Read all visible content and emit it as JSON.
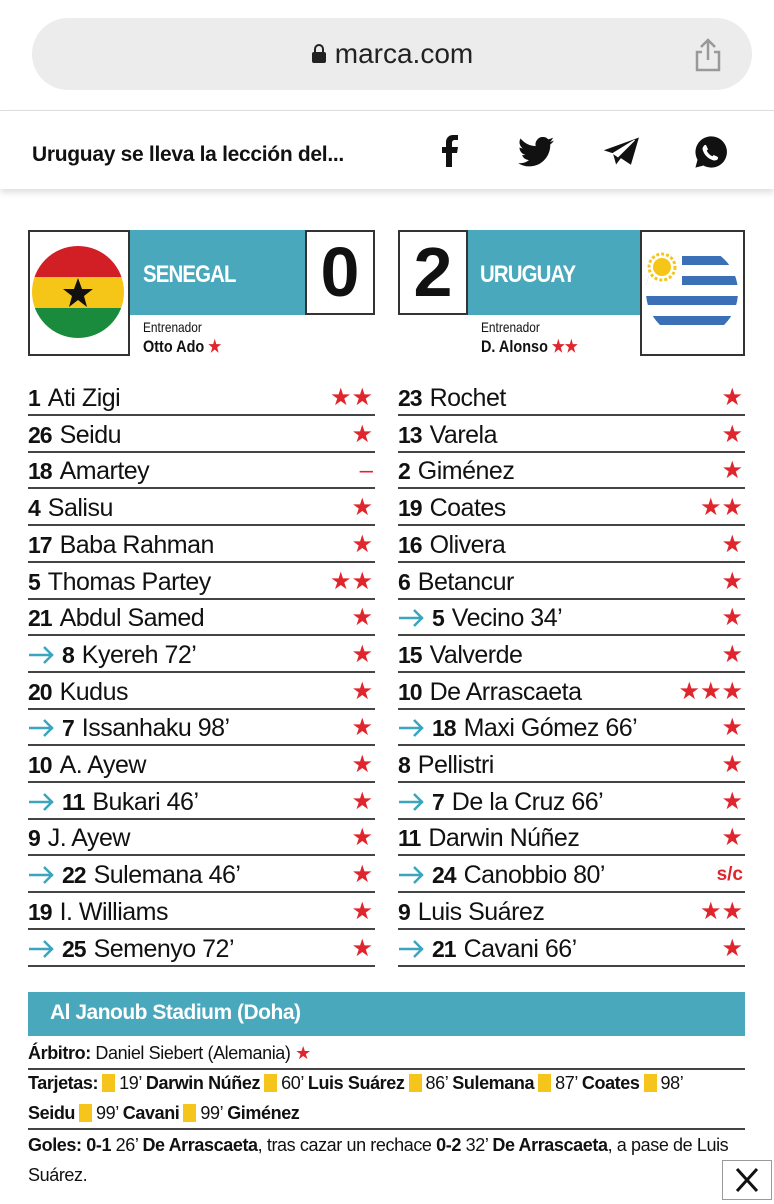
{
  "browser": {
    "url": "marca.com"
  },
  "header": {
    "title": "Uruguay se lleva la lección del..."
  },
  "match": {
    "home": {
      "team": "SENEGAL",
      "score": "0",
      "coach_label": "Entrenador",
      "coach": "Otto Ado",
      "coach_rating": "★",
      "players": [
        {
          "number": "1",
          "name": "Ati Zigi",
          "sub": false,
          "rating": "★★"
        },
        {
          "number": "26",
          "name": "Seidu",
          "sub": false,
          "rating": "★"
        },
        {
          "number": "18",
          "name": "Amartey",
          "sub": false,
          "rating": "–"
        },
        {
          "number": "4",
          "name": "Salisu",
          "sub": false,
          "rating": "★"
        },
        {
          "number": "17",
          "name": "Baba Rahman",
          "sub": false,
          "rating": "★"
        },
        {
          "number": "5",
          "name": "Thomas Partey",
          "sub": false,
          "rating": "★★"
        },
        {
          "number": "21",
          "name": "Abdul Samed",
          "sub": false,
          "rating": "★"
        },
        {
          "number": "8",
          "name": "Kyereh 72’",
          "sub": true,
          "rating": "★"
        },
        {
          "number": "20",
          "name": "Kudus",
          "sub": false,
          "rating": "★"
        },
        {
          "number": "7",
          "name": "Issanhaku 98’",
          "sub": true,
          "rating": "★"
        },
        {
          "number": "10",
          "name": "A. Ayew",
          "sub": false,
          "rating": "★"
        },
        {
          "number": "11",
          "name": "Bukari 46’",
          "sub": true,
          "rating": "★"
        },
        {
          "number": "9",
          "name": "J. Ayew",
          "sub": false,
          "rating": "★"
        },
        {
          "number": "22",
          "name": "Sulemana 46’",
          "sub": true,
          "rating": "★"
        },
        {
          "number": "19",
          "name": "I. Williams",
          "sub": false,
          "rating": "★"
        },
        {
          "number": "25",
          "name": "Semenyo 72’",
          "sub": true,
          "rating": "★"
        }
      ]
    },
    "away": {
      "team": "URUGUAY",
      "score": "2",
      "coach_label": "Entrenador",
      "coach": "D. Alonso",
      "coach_rating": "★★",
      "players": [
        {
          "number": "23",
          "name": "Rochet",
          "sub": false,
          "rating": "★"
        },
        {
          "number": "13",
          "name": "Varela",
          "sub": false,
          "rating": "★"
        },
        {
          "number": "2",
          "name": "Giménez",
          "sub": false,
          "rating": "★"
        },
        {
          "number": "19",
          "name": "Coates",
          "sub": false,
          "rating": "★★"
        },
        {
          "number": "16",
          "name": "Olivera",
          "sub": false,
          "rating": "★"
        },
        {
          "number": "6",
          "name": "Betancur",
          "sub": false,
          "rating": "★"
        },
        {
          "number": "5",
          "name": "Vecino 34’",
          "sub": true,
          "rating": "★"
        },
        {
          "number": "15",
          "name": "Valverde",
          "sub": false,
          "rating": "★"
        },
        {
          "number": "10",
          "name": "De Arrascaeta",
          "sub": false,
          "rating": "★★★"
        },
        {
          "number": "18",
          "name": "Maxi Gómez 66’",
          "sub": true,
          "rating": "★"
        },
        {
          "number": "8",
          "name": "Pellistri",
          "sub": false,
          "rating": "★"
        },
        {
          "number": "7",
          "name": "De la Cruz 66’",
          "sub": true,
          "rating": "★"
        },
        {
          "number": "11",
          "name": "Darwin Núñez",
          "sub": false,
          "rating": "★"
        },
        {
          "number": "24",
          "name": "Canobbio 80’",
          "sub": true,
          "rating": "s/c"
        },
        {
          "number": "9",
          "name": "Luis Suárez",
          "sub": false,
          "rating": "★★"
        },
        {
          "number": "21",
          "name": "Cavani 66’",
          "sub": true,
          "rating": "★"
        }
      ]
    },
    "stadium": "Al Janoub Stadium (Doha)",
    "referee": {
      "label": "Árbitro:",
      "name": "Daniel Siebert (Alemania)",
      "rating": "★"
    },
    "cards": {
      "label": "Tarjetas:",
      "entries": [
        {
          "minute": "19’",
          "player": "Darwin Núñez"
        },
        {
          "minute": "60’",
          "player": "Luis Suárez"
        },
        {
          "minute": "86’",
          "player": "Sulemana"
        },
        {
          "minute": "87’",
          "player": "Coates"
        },
        {
          "minute": "98’",
          "player": "Seidu"
        },
        {
          "minute": "99’",
          "player": "Cavani"
        },
        {
          "minute": "99’",
          "player": "Giménez"
        }
      ]
    },
    "goals": {
      "label": "Goles:",
      "entries": [
        {
          "score": "0-1",
          "minute": "26’",
          "scorer": "De Arrascaeta",
          "note": ", tras cazar un rechace"
        },
        {
          "score": "0-2",
          "minute": "32’",
          "scorer": "De Arrascaeta",
          "note": ", a pase de Luis Suárez."
        }
      ]
    }
  }
}
